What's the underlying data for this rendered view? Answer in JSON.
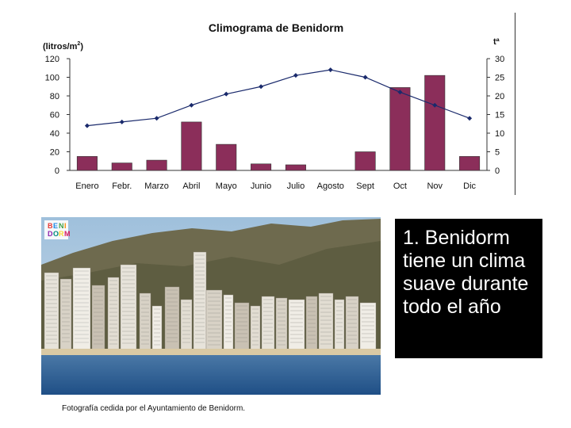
{
  "chart_data": {
    "type": "bar+line",
    "title": "Climograma de Benidorm",
    "ylabel_left": "(litros/m",
    "ylabel_left_sup": "2",
    "ylabel_left_end": ")",
    "ylabel_right": "tª",
    "categories": [
      "Enero",
      "Febr.",
      "Marzo",
      "Abril",
      "Mayo",
      "Junio",
      "Julio",
      "Agosto",
      "Sept",
      "Oct",
      "Nov",
      "Dic"
    ],
    "y_left_ticks": [
      "0",
      "20",
      "40",
      "60",
      "80",
      "100",
      "120"
    ],
    "y_right_ticks": [
      "0",
      "5",
      "10",
      "15",
      "20",
      "25",
      "30"
    ],
    "ylim_left": [
      0,
      120
    ],
    "ylim_right": [
      0,
      30
    ],
    "series": [
      {
        "kind": "bar",
        "axis": "left",
        "values": [
          15,
          8,
          11,
          52,
          28,
          7,
          6,
          0,
          20,
          89,
          102,
          15
        ],
        "color": "#8b2e5a"
      },
      {
        "kind": "line",
        "axis": "right",
        "values": [
          12,
          13,
          14,
          17.5,
          20.5,
          22.5,
          25.5,
          27,
          25,
          21,
          17.5,
          14
        ],
        "color": "#1a2a6c"
      }
    ]
  },
  "photo": {
    "logo_letters": [
      "B",
      "E",
      "N",
      "I",
      "D",
      "O",
      "R",
      "M"
    ],
    "caption": "Fotografía cedida por el Ayuntamiento de Benidorm."
  },
  "textbox": {
    "text": "1. Benidorm tiene un clima suave durante todo el año"
  }
}
